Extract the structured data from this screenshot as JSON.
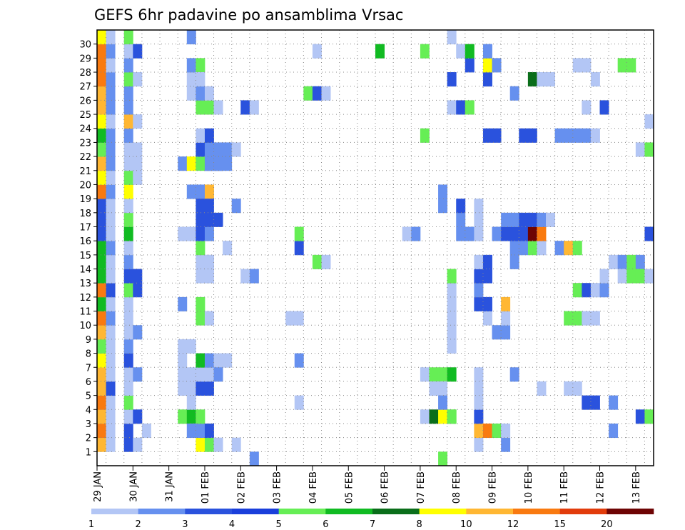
{
  "chart_data": {
    "type": "heatmap",
    "title": "GEFS 6hr padavine po ansamblima Vrsac",
    "x_tick_labels": [
      "29 JAN",
      "30 JAN",
      "31 JAN",
      "01 FEB",
      "02 FEB",
      "03 FEB",
      "04 FEB",
      "05 FEB",
      "06 FEB",
      "07 FEB",
      "08 FEB",
      "09 FEB",
      "10 FEB",
      "11 FEB",
      "12 FEB",
      "13 FEB"
    ],
    "y_tick_labels": [
      "1",
      "2",
      "3",
      "4",
      "5",
      "6",
      "7",
      "8",
      "9",
      "10",
      "11",
      "12",
      "13",
      "14",
      "15",
      "16",
      "17",
      "18",
      "19",
      "20",
      "21",
      "22",
      "23",
      "24",
      "25",
      "26",
      "27",
      "28",
      "29",
      "30"
    ],
    "grid": true,
    "legend": {
      "position": "bottom",
      "labels": [
        "1",
        "2",
        "3",
        "4",
        "5",
        "6",
        "7",
        "8",
        "10",
        "12",
        "15",
        "20"
      ],
      "colors": [
        "#b3c6f5",
        "#6690ef",
        "#2a52dd",
        "#1a3fdb",
        "#66ee55",
        "#11bb22",
        "#0a6e1a",
        "#ffff00",
        "#ffb733",
        "#f97a10",
        "#e23c0c",
        "#6e0404"
      ]
    },
    "x_unit": "6-hour step from 29 JAN 00Z",
    "cells": [
      [
        0,
        1,
        10
      ],
      [
        0,
        2,
        12
      ],
      [
        0,
        3,
        10
      ],
      [
        0,
        4,
        12
      ],
      [
        0,
        5,
        10
      ],
      [
        0,
        6,
        10
      ],
      [
        0,
        7,
        8
      ],
      [
        0,
        8,
        5
      ],
      [
        0,
        9,
        10
      ],
      [
        0,
        10,
        12
      ],
      [
        0,
        11,
        6
      ],
      [
        0,
        12,
        12
      ],
      [
        0,
        13,
        6
      ],
      [
        0,
        14,
        6
      ],
      [
        0,
        15,
        6
      ],
      [
        0,
        16,
        3
      ],
      [
        0,
        17,
        3
      ],
      [
        0,
        18,
        3
      ],
      [
        0,
        19,
        12
      ],
      [
        0,
        20,
        8
      ],
      [
        0,
        21,
        10
      ],
      [
        0,
        22,
        5
      ],
      [
        0,
        23,
        6
      ],
      [
        0,
        24,
        8
      ],
      [
        0,
        25,
        10
      ],
      [
        0,
        26,
        10
      ],
      [
        0,
        27,
        12
      ],
      [
        0,
        28,
        12
      ],
      [
        0,
        29,
        12
      ],
      [
        0,
        30,
        8
      ],
      [
        1,
        1,
        1
      ],
      [
        1,
        2,
        1
      ],
      [
        1,
        3,
        1
      ],
      [
        1,
        4,
        1
      ],
      [
        1,
        5,
        3
      ],
      [
        1,
        6,
        1
      ],
      [
        1,
        7,
        1
      ],
      [
        1,
        8,
        1
      ],
      [
        1,
        9,
        1
      ],
      [
        1,
        10,
        2
      ],
      [
        1,
        11,
        1
      ],
      [
        1,
        12,
        3
      ],
      [
        1,
        13,
        1
      ],
      [
        1,
        14,
        1
      ],
      [
        1,
        15,
        2
      ],
      [
        1,
        16,
        1
      ],
      [
        1,
        17,
        1
      ],
      [
        1,
        18,
        1
      ],
      [
        1,
        19,
        2
      ],
      [
        1,
        20,
        1
      ],
      [
        1,
        21,
        2
      ],
      [
        1,
        22,
        2
      ],
      [
        1,
        23,
        2
      ],
      [
        1,
        24,
        1
      ],
      [
        1,
        25,
        2
      ],
      [
        1,
        26,
        2
      ],
      [
        1,
        27,
        2
      ],
      [
        1,
        28,
        1
      ],
      [
        1,
        29,
        2
      ],
      [
        1,
        30,
        1
      ],
      [
        3,
        1,
        3
      ],
      [
        3,
        2,
        3
      ],
      [
        3,
        3,
        1
      ],
      [
        3,
        4,
        5
      ],
      [
        3,
        5,
        1
      ],
      [
        3,
        6,
        1
      ],
      [
        3,
        7,
        3
      ],
      [
        3,
        8,
        2
      ],
      [
        3,
        9,
        1
      ],
      [
        3,
        10,
        1
      ],
      [
        3,
        11,
        1
      ],
      [
        3,
        12,
        5
      ],
      [
        3,
        13,
        3
      ],
      [
        3,
        14,
        2
      ],
      [
        3,
        15,
        1
      ],
      [
        3,
        16,
        6
      ],
      [
        3,
        17,
        5
      ],
      [
        3,
        18,
        1
      ],
      [
        3,
        19,
        8
      ],
      [
        3,
        20,
        5
      ],
      [
        3,
        21,
        1
      ],
      [
        3,
        22,
        1
      ],
      [
        3,
        23,
        2
      ],
      [
        3,
        24,
        10
      ],
      [
        3,
        25,
        2
      ],
      [
        3,
        26,
        2
      ],
      [
        3,
        27,
        5
      ],
      [
        3,
        28,
        2
      ],
      [
        3,
        29,
        1
      ],
      [
        3,
        30,
        5
      ],
      [
        4,
        1,
        1
      ],
      [
        4,
        3,
        3
      ],
      [
        4,
        6,
        2
      ],
      [
        4,
        9,
        2
      ],
      [
        4,
        12,
        3
      ],
      [
        4,
        13,
        3
      ],
      [
        4,
        20,
        1
      ],
      [
        4,
        21,
        1
      ],
      [
        4,
        22,
        1
      ],
      [
        4,
        24,
        1
      ],
      [
        4,
        27,
        1
      ],
      [
        4,
        29,
        3
      ],
      [
        5,
        2,
        1
      ],
      [
        9,
        16,
        1
      ],
      [
        10,
        16,
        1
      ],
      [
        11,
        13,
        1
      ],
      [
        11,
        14,
        1
      ],
      [
        12,
        13,
        1
      ],
      [
        12,
        14,
        1
      ],
      [
        9,
        6,
        1
      ],
      [
        9,
        7,
        1
      ],
      [
        9,
        8,
        1
      ],
      [
        10,
        8,
        1
      ],
      [
        9,
        5,
        1
      ],
      [
        10,
        5,
        1
      ],
      [
        11,
        5,
        1
      ],
      [
        12,
        5,
        1
      ],
      [
        9,
        3,
        5
      ],
      [
        10,
        3,
        6
      ],
      [
        9,
        11,
        2
      ],
      [
        9,
        21,
        2
      ],
      [
        10,
        21,
        8
      ],
      [
        11,
        21,
        5
      ],
      [
        12,
        21,
        3
      ],
      [
        13,
        21,
        3
      ],
      [
        10,
        19,
        2
      ],
      [
        11,
        19,
        2
      ],
      [
        12,
        19,
        10
      ],
      [
        10,
        26,
        1
      ],
      [
        10,
        27,
        1
      ],
      [
        10,
        28,
        2
      ],
      [
        11,
        28,
        5
      ],
      [
        10,
        30,
        2
      ],
      [
        11,
        1,
        8
      ],
      [
        12,
        1,
        5
      ],
      [
        13,
        1,
        1
      ],
      [
        10,
        2,
        2
      ],
      [
        11,
        2,
        2
      ],
      [
        12,
        2,
        3
      ],
      [
        11,
        3,
        5
      ],
      [
        10,
        4,
        1
      ],
      [
        11,
        5,
        3
      ],
      [
        12,
        5,
        3
      ],
      [
        10,
        6,
        1
      ],
      [
        11,
        6,
        1
      ],
      [
        12,
        6,
        1
      ],
      [
        11,
        7,
        6
      ],
      [
        12,
        7,
        2
      ],
      [
        13,
        7,
        1
      ],
      [
        14,
        7,
        1
      ],
      [
        11,
        10,
        5
      ],
      [
        12,
        10,
        1
      ],
      [
        11,
        11,
        5
      ],
      [
        12,
        14,
        1
      ],
      [
        11,
        15,
        5
      ],
      [
        11,
        16,
        3
      ],
      [
        12,
        16,
        2
      ],
      [
        11,
        17,
        3
      ],
      [
        12,
        17,
        3
      ],
      [
        13,
        17,
        3
      ],
      [
        11,
        18,
        3
      ],
      [
        12,
        18,
        3
      ],
      [
        11,
        22,
        3
      ],
      [
        12,
        22,
        2
      ],
      [
        13,
        22,
        2
      ],
      [
        14,
        22,
        2
      ],
      [
        15,
        22,
        1
      ],
      [
        12,
        21,
        2
      ],
      [
        13,
        21,
        2
      ],
      [
        14,
        21,
        2
      ],
      [
        11,
        23,
        1
      ],
      [
        12,
        23,
        3
      ],
      [
        11,
        25,
        5
      ],
      [
        12,
        25,
        5
      ],
      [
        13,
        25,
        1
      ],
      [
        11,
        26,
        2
      ],
      [
        12,
        26,
        1
      ],
      [
        11,
        27,
        1
      ],
      [
        14,
        15,
        1
      ],
      [
        15,
        18,
        2
      ],
      [
        15,
        1,
        1
      ],
      [
        13,
        6,
        2
      ],
      [
        16,
        25,
        3
      ],
      [
        17,
        25,
        1
      ],
      [
        16,
        13,
        1
      ],
      [
        17,
        13,
        2
      ],
      [
        17,
        0,
        2
      ],
      [
        21,
        10,
        1
      ],
      [
        22,
        10,
        1
      ],
      [
        22,
        4,
        1
      ],
      [
        22,
        7,
        2
      ],
      [
        22,
        15,
        3
      ],
      [
        22,
        16,
        5
      ],
      [
        23,
        26,
        5
      ],
      [
        24,
        26,
        3
      ],
      [
        25,
        26,
        1
      ],
      [
        24,
        14,
        5
      ],
      [
        25,
        14,
        1
      ],
      [
        24,
        29,
        1
      ],
      [
        31,
        29,
        6
      ],
      [
        34,
        16,
        1
      ],
      [
        35,
        16,
        2
      ],
      [
        36,
        3,
        1
      ],
      [
        37,
        3,
        7
      ],
      [
        38,
        3,
        8
      ],
      [
        39,
        3,
        5
      ],
      [
        36,
        6,
        1
      ],
      [
        37,
        6,
        5
      ],
      [
        38,
        6,
        5
      ],
      [
        39,
        6,
        6
      ],
      [
        37,
        5,
        1
      ],
      [
        38,
        5,
        1
      ],
      [
        38,
        4,
        2
      ],
      [
        36,
        23,
        5
      ],
      [
        36,
        29,
        5
      ],
      [
        38,
        0,
        5
      ],
      [
        38,
        19,
        2
      ],
      [
        38,
        18,
        2
      ],
      [
        39,
        3,
        5
      ],
      [
        39,
        8,
        1
      ],
      [
        39,
        9,
        1
      ],
      [
        39,
        10,
        1
      ],
      [
        39,
        11,
        1
      ],
      [
        39,
        12,
        1
      ],
      [
        39,
        13,
        5
      ],
      [
        39,
        27,
        3
      ],
      [
        39,
        25,
        1
      ],
      [
        39,
        30,
        1
      ],
      [
        40,
        16,
        2
      ],
      [
        40,
        17,
        2
      ],
      [
        40,
        18,
        3
      ],
      [
        40,
        25,
        3
      ],
      [
        40,
        29,
        1
      ],
      [
        41,
        16,
        2
      ],
      [
        41,
        25,
        5
      ],
      [
        41,
        28,
        3
      ],
      [
        41,
        29,
        6
      ],
      [
        42,
        1,
        1
      ],
      [
        42,
        2,
        10
      ],
      [
        42,
        3,
        3
      ],
      [
        42,
        4,
        1
      ],
      [
        42,
        5,
        1
      ],
      [
        42,
        6,
        1
      ],
      [
        42,
        11,
        3
      ],
      [
        42,
        12,
        2
      ],
      [
        42,
        13,
        3
      ],
      [
        42,
        14,
        1
      ],
      [
        42,
        16,
        1
      ],
      [
        42,
        17,
        1
      ],
      [
        42,
        18,
        1
      ],
      [
        43,
        2,
        12
      ],
      [
        43,
        10,
        1
      ],
      [
        43,
        11,
        3
      ],
      [
        43,
        13,
        3
      ],
      [
        43,
        14,
        3
      ],
      [
        43,
        23,
        3
      ],
      [
        43,
        27,
        3
      ],
      [
        43,
        28,
        8
      ],
      [
        43,
        29,
        2
      ],
      [
        44,
        2,
        5
      ],
      [
        44,
        9,
        2
      ],
      [
        44,
        16,
        2
      ],
      [
        44,
        23,
        3
      ],
      [
        44,
        28,
        2
      ],
      [
        45,
        1,
        2
      ],
      [
        45,
        2,
        1
      ],
      [
        45,
        9,
        2
      ],
      [
        45,
        10,
        1
      ],
      [
        45,
        11,
        10
      ],
      [
        45,
        16,
        3
      ],
      [
        45,
        17,
        2
      ],
      [
        46,
        6,
        2
      ],
      [
        46,
        14,
        2
      ],
      [
        46,
        15,
        2
      ],
      [
        46,
        16,
        3
      ],
      [
        46,
        17,
        2
      ],
      [
        46,
        26,
        2
      ],
      [
        47,
        15,
        2
      ],
      [
        47,
        16,
        3
      ],
      [
        47,
        17,
        3
      ],
      [
        47,
        23,
        3
      ],
      [
        48,
        15,
        5
      ],
      [
        48,
        16,
        20
      ],
      [
        48,
        17,
        3
      ],
      [
        48,
        27,
        7
      ],
      [
        48,
        23,
        3
      ],
      [
        49,
        15,
        1
      ],
      [
        49,
        16,
        12
      ],
      [
        49,
        17,
        2
      ],
      [
        49,
        5,
        1
      ],
      [
        49,
        27,
        1
      ],
      [
        50,
        17,
        1
      ],
      [
        50,
        27,
        1
      ],
      [
        51,
        15,
        2
      ],
      [
        51,
        23,
        2
      ],
      [
        52,
        5,
        1
      ],
      [
        52,
        10,
        5
      ],
      [
        52,
        15,
        10
      ],
      [
        52,
        23,
        2
      ],
      [
        53,
        5,
        1
      ],
      [
        53,
        10,
        5
      ],
      [
        53,
        12,
        5
      ],
      [
        53,
        15,
        5
      ],
      [
        53,
        28,
        1
      ],
      [
        53,
        23,
        2
      ],
      [
        54,
        10,
        1
      ],
      [
        54,
        12,
        3
      ],
      [
        54,
        23,
        2
      ],
      [
        54,
        25,
        1
      ],
      [
        54,
        28,
        1
      ],
      [
        54,
        4,
        3
      ],
      [
        55,
        4,
        3
      ],
      [
        55,
        10,
        1
      ],
      [
        55,
        12,
        1
      ],
      [
        55,
        27,
        1
      ],
      [
        55,
        23,
        1
      ],
      [
        56,
        12,
        2
      ],
      [
        56,
        13,
        1
      ],
      [
        56,
        25,
        3
      ],
      [
        57,
        4,
        2
      ],
      [
        57,
        14,
        1
      ],
      [
        57,
        2,
        2
      ],
      [
        58,
        14,
        2
      ],
      [
        58,
        13,
        1
      ],
      [
        58,
        28,
        5
      ],
      [
        59,
        14,
        5
      ],
      [
        59,
        13,
        5
      ],
      [
        59,
        28,
        5
      ],
      [
        60,
        3,
        3
      ],
      [
        60,
        14,
        2
      ],
      [
        60,
        13,
        5
      ],
      [
        60,
        22,
        1
      ],
      [
        61,
        3,
        5
      ],
      [
        61,
        13,
        1
      ],
      [
        61,
        16,
        3
      ],
      [
        61,
        22,
        5
      ],
      [
        61,
        24,
        1
      ]
    ]
  }
}
